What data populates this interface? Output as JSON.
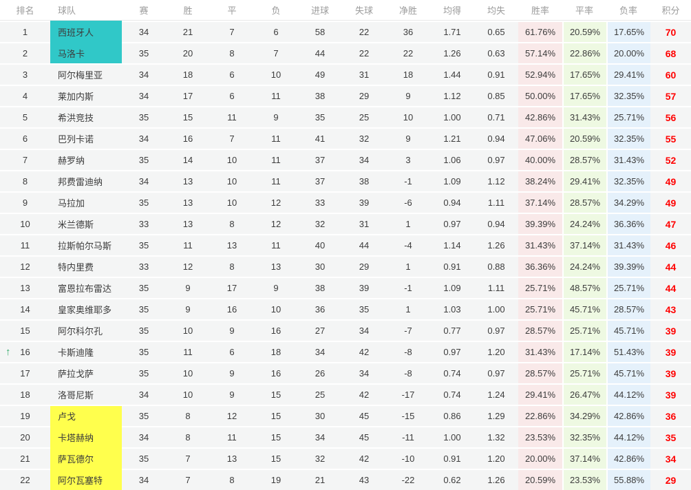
{
  "colors": {
    "promotion_highlight": "#30c8c8",
    "relegation_highlight": "#ffff4d",
    "win_rate_bg": "#f9e9e9",
    "draw_rate_bg": "#eef9e2",
    "loss_rate_bg": "#e5f1fb",
    "points_color": "#ff0000",
    "up_arrow_color": "#2fa968"
  },
  "icons": {
    "up_arrow": "↑"
  },
  "table": {
    "headers": [
      "排名",
      "球队",
      "赛",
      "胜",
      "平",
      "负",
      "进球",
      "失球",
      "净胜",
      "均得",
      "均失",
      "胜率",
      "平率",
      "负率",
      "积分"
    ],
    "rows": [
      {
        "rank": "1",
        "team": "西班牙人",
        "played": "34",
        "wins": "21",
        "draws": "7",
        "losses": "6",
        "goals_for": "58",
        "goals_against": "22",
        "goal_diff": "36",
        "avg_scored": "1.71",
        "avg_conceded": "0.65",
        "win_rate": "61.76%",
        "draw_rate": "20.59%",
        "loss_rate": "17.65%",
        "points": "70",
        "highlight": "teal",
        "movement": ""
      },
      {
        "rank": "2",
        "team": "马洛卡",
        "played": "35",
        "wins": "20",
        "draws": "8",
        "losses": "7",
        "goals_for": "44",
        "goals_against": "22",
        "goal_diff": "22",
        "avg_scored": "1.26",
        "avg_conceded": "0.63",
        "win_rate": "57.14%",
        "draw_rate": "22.86%",
        "loss_rate": "20.00%",
        "points": "68",
        "highlight": "teal",
        "movement": ""
      },
      {
        "rank": "3",
        "team": "阿尔梅里亚",
        "played": "34",
        "wins": "18",
        "draws": "6",
        "losses": "10",
        "goals_for": "49",
        "goals_against": "31",
        "goal_diff": "18",
        "avg_scored": "1.44",
        "avg_conceded": "0.91",
        "win_rate": "52.94%",
        "draw_rate": "17.65%",
        "loss_rate": "29.41%",
        "points": "60",
        "highlight": "",
        "movement": ""
      },
      {
        "rank": "4",
        "team": "莱加内斯",
        "played": "34",
        "wins": "17",
        "draws": "6",
        "losses": "11",
        "goals_for": "38",
        "goals_against": "29",
        "goal_diff": "9",
        "avg_scored": "1.12",
        "avg_conceded": "0.85",
        "win_rate": "50.00%",
        "draw_rate": "17.65%",
        "loss_rate": "32.35%",
        "points": "57",
        "highlight": "",
        "movement": ""
      },
      {
        "rank": "5",
        "team": "希洪竞技",
        "played": "35",
        "wins": "15",
        "draws": "11",
        "losses": "9",
        "goals_for": "35",
        "goals_against": "25",
        "goal_diff": "10",
        "avg_scored": "1.00",
        "avg_conceded": "0.71",
        "win_rate": "42.86%",
        "draw_rate": "31.43%",
        "loss_rate": "25.71%",
        "points": "56",
        "highlight": "",
        "movement": ""
      },
      {
        "rank": "6",
        "team": "巴列卡诺",
        "played": "34",
        "wins": "16",
        "draws": "7",
        "losses": "11",
        "goals_for": "41",
        "goals_against": "32",
        "goal_diff": "9",
        "avg_scored": "1.21",
        "avg_conceded": "0.94",
        "win_rate": "47.06%",
        "draw_rate": "20.59%",
        "loss_rate": "32.35%",
        "points": "55",
        "highlight": "",
        "movement": ""
      },
      {
        "rank": "7",
        "team": "赫罗纳",
        "played": "35",
        "wins": "14",
        "draws": "10",
        "losses": "11",
        "goals_for": "37",
        "goals_against": "34",
        "goal_diff": "3",
        "avg_scored": "1.06",
        "avg_conceded": "0.97",
        "win_rate": "40.00%",
        "draw_rate": "28.57%",
        "loss_rate": "31.43%",
        "points": "52",
        "highlight": "",
        "movement": ""
      },
      {
        "rank": "8",
        "team": "邦费雷迪纳",
        "played": "34",
        "wins": "13",
        "draws": "10",
        "losses": "11",
        "goals_for": "37",
        "goals_against": "38",
        "goal_diff": "-1",
        "avg_scored": "1.09",
        "avg_conceded": "1.12",
        "win_rate": "38.24%",
        "draw_rate": "29.41%",
        "loss_rate": "32.35%",
        "points": "49",
        "highlight": "",
        "movement": ""
      },
      {
        "rank": "9",
        "team": "马拉加",
        "played": "35",
        "wins": "13",
        "draws": "10",
        "losses": "12",
        "goals_for": "33",
        "goals_against": "39",
        "goal_diff": "-6",
        "avg_scored": "0.94",
        "avg_conceded": "1.11",
        "win_rate": "37.14%",
        "draw_rate": "28.57%",
        "loss_rate": "34.29%",
        "points": "49",
        "highlight": "",
        "movement": ""
      },
      {
        "rank": "10",
        "team": "米兰德斯",
        "played": "33",
        "wins": "13",
        "draws": "8",
        "losses": "12",
        "goals_for": "32",
        "goals_against": "31",
        "goal_diff": "1",
        "avg_scored": "0.97",
        "avg_conceded": "0.94",
        "win_rate": "39.39%",
        "draw_rate": "24.24%",
        "loss_rate": "36.36%",
        "points": "47",
        "highlight": "",
        "movement": ""
      },
      {
        "rank": "11",
        "team": "拉斯帕尔马斯",
        "played": "35",
        "wins": "11",
        "draws": "13",
        "losses": "11",
        "goals_for": "40",
        "goals_against": "44",
        "goal_diff": "-4",
        "avg_scored": "1.14",
        "avg_conceded": "1.26",
        "win_rate": "31.43%",
        "draw_rate": "37.14%",
        "loss_rate": "31.43%",
        "points": "46",
        "highlight": "",
        "movement": ""
      },
      {
        "rank": "12",
        "team": "特内里费",
        "played": "33",
        "wins": "12",
        "draws": "8",
        "losses": "13",
        "goals_for": "30",
        "goals_against": "29",
        "goal_diff": "1",
        "avg_scored": "0.91",
        "avg_conceded": "0.88",
        "win_rate": "36.36%",
        "draw_rate": "24.24%",
        "loss_rate": "39.39%",
        "points": "44",
        "highlight": "",
        "movement": ""
      },
      {
        "rank": "13",
        "team": "富恩拉布雷达",
        "played": "35",
        "wins": "9",
        "draws": "17",
        "losses": "9",
        "goals_for": "38",
        "goals_against": "39",
        "goal_diff": "-1",
        "avg_scored": "1.09",
        "avg_conceded": "1.11",
        "win_rate": "25.71%",
        "draw_rate": "48.57%",
        "loss_rate": "25.71%",
        "points": "44",
        "highlight": "",
        "movement": ""
      },
      {
        "rank": "14",
        "team": "皇家奥维耶多",
        "played": "35",
        "wins": "9",
        "draws": "16",
        "losses": "10",
        "goals_for": "36",
        "goals_against": "35",
        "goal_diff": "1",
        "avg_scored": "1.03",
        "avg_conceded": "1.00",
        "win_rate": "25.71%",
        "draw_rate": "45.71%",
        "loss_rate": "28.57%",
        "points": "43",
        "highlight": "",
        "movement": ""
      },
      {
        "rank": "15",
        "team": "阿尔科尔孔",
        "played": "35",
        "wins": "10",
        "draws": "9",
        "losses": "16",
        "goals_for": "27",
        "goals_against": "34",
        "goal_diff": "-7",
        "avg_scored": "0.77",
        "avg_conceded": "0.97",
        "win_rate": "28.57%",
        "draw_rate": "25.71%",
        "loss_rate": "45.71%",
        "points": "39",
        "highlight": "",
        "movement": ""
      },
      {
        "rank": "16",
        "team": "卡斯迪隆",
        "played": "35",
        "wins": "11",
        "draws": "6",
        "losses": "18",
        "goals_for": "34",
        "goals_against": "42",
        "goal_diff": "-8",
        "avg_scored": "0.97",
        "avg_conceded": "1.20",
        "win_rate": "31.43%",
        "draw_rate": "17.14%",
        "loss_rate": "51.43%",
        "points": "39",
        "highlight": "",
        "movement": "up"
      },
      {
        "rank": "17",
        "team": "萨拉戈萨",
        "played": "35",
        "wins": "10",
        "draws": "9",
        "losses": "16",
        "goals_for": "26",
        "goals_against": "34",
        "goal_diff": "-8",
        "avg_scored": "0.74",
        "avg_conceded": "0.97",
        "win_rate": "28.57%",
        "draw_rate": "25.71%",
        "loss_rate": "45.71%",
        "points": "39",
        "highlight": "",
        "movement": ""
      },
      {
        "rank": "18",
        "team": "洛哥尼斯",
        "played": "34",
        "wins": "10",
        "draws": "9",
        "losses": "15",
        "goals_for": "25",
        "goals_against": "42",
        "goal_diff": "-17",
        "avg_scored": "0.74",
        "avg_conceded": "1.24",
        "win_rate": "29.41%",
        "draw_rate": "26.47%",
        "loss_rate": "44.12%",
        "points": "39",
        "highlight": "",
        "movement": ""
      },
      {
        "rank": "19",
        "team": "卢戈",
        "played": "35",
        "wins": "8",
        "draws": "12",
        "losses": "15",
        "goals_for": "30",
        "goals_against": "45",
        "goal_diff": "-15",
        "avg_scored": "0.86",
        "avg_conceded": "1.29",
        "win_rate": "22.86%",
        "draw_rate": "34.29%",
        "loss_rate": "42.86%",
        "points": "36",
        "highlight": "yellow",
        "movement": ""
      },
      {
        "rank": "20",
        "team": "卡塔赫纳",
        "played": "34",
        "wins": "8",
        "draws": "11",
        "losses": "15",
        "goals_for": "34",
        "goals_against": "45",
        "goal_diff": "-11",
        "avg_scored": "1.00",
        "avg_conceded": "1.32",
        "win_rate": "23.53%",
        "draw_rate": "32.35%",
        "loss_rate": "44.12%",
        "points": "35",
        "highlight": "yellow",
        "movement": ""
      },
      {
        "rank": "21",
        "team": "萨瓦德尔",
        "played": "35",
        "wins": "7",
        "draws": "13",
        "losses": "15",
        "goals_for": "32",
        "goals_against": "42",
        "goal_diff": "-10",
        "avg_scored": "0.91",
        "avg_conceded": "1.20",
        "win_rate": "20.00%",
        "draw_rate": "37.14%",
        "loss_rate": "42.86%",
        "points": "34",
        "highlight": "yellow",
        "movement": ""
      },
      {
        "rank": "22",
        "team": "阿尔瓦塞特",
        "played": "34",
        "wins": "7",
        "draws": "8",
        "losses": "19",
        "goals_for": "21",
        "goals_against": "43",
        "goal_diff": "-22",
        "avg_scored": "0.62",
        "avg_conceded": "1.26",
        "win_rate": "20.59%",
        "draw_rate": "23.53%",
        "loss_rate": "55.88%",
        "points": "29",
        "highlight": "yellow",
        "movement": ""
      }
    ]
  }
}
